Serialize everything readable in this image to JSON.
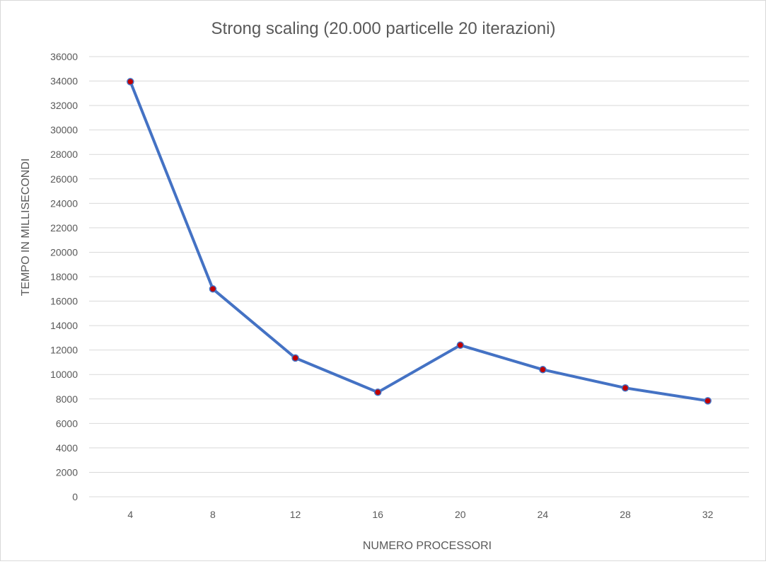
{
  "chart_data": {
    "type": "line",
    "title": "Strong scaling (20.000 particelle 20 iterazioni)",
    "xlabel": "NUMERO PROCESSORI",
    "ylabel": "TEMPO IN MILLISECONDI",
    "categories": [
      "4",
      "8",
      "12",
      "16",
      "20",
      "24",
      "28",
      "32"
    ],
    "series": [
      {
        "values": [
          33950,
          17000,
          11350,
          8550,
          12400,
          10400,
          8900,
          7850
        ],
        "line_color": "#4472c4",
        "marker_color": "#c00000"
      }
    ],
    "ylim": [
      0,
      36000
    ],
    "y_ticks": [
      "0",
      "2000",
      "4000",
      "6000",
      "8000",
      "10000",
      "12000",
      "14000",
      "16000",
      "18000",
      "20000",
      "22000",
      "24000",
      "26000",
      "28000",
      "30000",
      "32000",
      "34000",
      "36000"
    ],
    "grid": true,
    "legend": "none",
    "colors": {
      "gridline": "#d9d9d9",
      "text": "#595959"
    }
  }
}
